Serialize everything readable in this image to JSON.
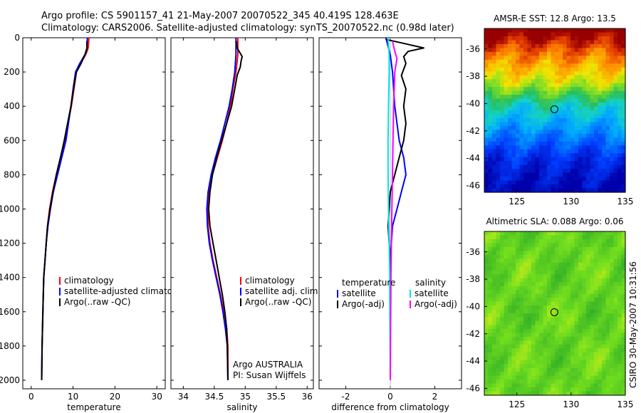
{
  "header": {
    "line1": "Argo profile: CS 5901157_41 21-May-2007 20070522_345 40.419S 128.463E",
    "line2": "Climatology: CARS2006. Satellite-adjusted climatology: synTS_20070522.nc (0.98d later)"
  },
  "footer_stamp": "CSIRO 30-May-2007 10:31:56",
  "colors": {
    "red": "#ff0000",
    "blue": "#0000ff",
    "black": "#000000",
    "cyan": "#00e5e5",
    "magenta": "#ff00ff"
  },
  "chart_data": [
    {
      "id": "temp",
      "type": "line",
      "xlabel": "temperature",
      "xlim": [
        -2,
        32
      ],
      "xticks": [
        0,
        10,
        20,
        30
      ],
      "ylim": [
        0,
        2050
      ],
      "yticks": [
        0,
        200,
        400,
        600,
        800,
        1000,
        1200,
        1400,
        1600,
        1800,
        2000
      ],
      "legend": [
        "climatology",
        "satellite-adjusted climatology",
        "Argo(..raw -QC)"
      ],
      "series": [
        {
          "name": "climatology",
          "color": "red",
          "points": [
            [
              13.8,
              0
            ],
            [
              13.6,
              60
            ],
            [
              13.0,
              100
            ],
            [
              11.8,
              150
            ],
            [
              10.8,
              200
            ],
            [
              10.2,
              300
            ],
            [
              9.6,
              400
            ],
            [
              8.8,
              500
            ],
            [
              8.0,
              600
            ],
            [
              7.0,
              700
            ],
            [
              6.0,
              800
            ],
            [
              5.1,
              900
            ],
            [
              4.4,
              1000
            ],
            [
              3.9,
              1100
            ],
            [
              3.6,
              1200
            ],
            [
              3.3,
              1300
            ],
            [
              3.0,
              1400
            ],
            [
              2.8,
              1600
            ],
            [
              2.6,
              1800
            ],
            [
              2.5,
              2000
            ]
          ]
        },
        {
          "name": "satellite-adjusted climatology",
          "color": "blue",
          "points": [
            [
              13.4,
              0
            ],
            [
              13.3,
              60
            ],
            [
              12.8,
              100
            ],
            [
              11.6,
              150
            ],
            [
              10.6,
              200
            ],
            [
              10.0,
              300
            ],
            [
              9.5,
              400
            ],
            [
              8.9,
              500
            ],
            [
              8.3,
              600
            ],
            [
              7.3,
              700
            ],
            [
              6.3,
              800
            ],
            [
              5.3,
              900
            ],
            [
              4.6,
              1000
            ],
            [
              4.0,
              1100
            ],
            [
              3.6,
              1200
            ],
            [
              3.3,
              1300
            ],
            [
              3.0,
              1400
            ],
            [
              2.8,
              1600
            ],
            [
              2.6,
              1800
            ],
            [
              2.5,
              2000
            ]
          ]
        },
        {
          "name": "Argo(..raw -QC)",
          "color": "black",
          "points": [
            [
              13.3,
              20
            ],
            [
              13.3,
              60
            ],
            [
              13.2,
              80
            ],
            [
              12.8,
              100
            ],
            [
              11.9,
              150
            ],
            [
              10.8,
              200
            ],
            [
              10.1,
              300
            ],
            [
              9.5,
              400
            ],
            [
              8.7,
              500
            ],
            [
              7.9,
              600
            ],
            [
              7.0,
              700
            ],
            [
              6.0,
              800
            ],
            [
              5.2,
              900
            ],
            [
              4.5,
              1000
            ],
            [
              3.9,
              1100
            ],
            [
              3.6,
              1200
            ],
            [
              3.3,
              1300
            ],
            [
              3.0,
              1400
            ],
            [
              2.8,
              1600
            ],
            [
              2.6,
              1800
            ],
            [
              2.5,
              2000
            ]
          ]
        }
      ]
    },
    {
      "id": "sal",
      "type": "line",
      "xlabel": "salinity",
      "xlim": [
        33.8,
        36.1
      ],
      "xticks": [
        34,
        34.5,
        35,
        35.5,
        36
      ],
      "ylim": [
        0,
        2050
      ],
      "legend": [
        "climatology",
        "satellite adj. clim.",
        "Argo(..raw -QC)"
      ],
      "annotation": [
        "Argo AUSTRALIA",
        "PI: Susan Wijffels"
      ],
      "series": [
        {
          "name": "climatology",
          "color": "red",
          "points": [
            [
              34.88,
              0
            ],
            [
              34.88,
              100
            ],
            [
              34.85,
              200
            ],
            [
              34.8,
              300
            ],
            [
              34.76,
              400
            ],
            [
              34.7,
              500
            ],
            [
              34.63,
              600
            ],
            [
              34.55,
              700
            ],
            [
              34.47,
              800
            ],
            [
              34.42,
              900
            ],
            [
              34.4,
              1000
            ],
            [
              34.4,
              1100
            ],
            [
              34.43,
              1200
            ],
            [
              34.48,
              1300
            ],
            [
              34.54,
              1400
            ],
            [
              34.6,
              1500
            ],
            [
              34.65,
              1600
            ],
            [
              34.7,
              1700
            ],
            [
              34.72,
              1800
            ],
            [
              34.72,
              2000
            ]
          ]
        },
        {
          "name": "satellite adj. clim.",
          "color": "blue",
          "points": [
            [
              34.85,
              0
            ],
            [
              34.85,
              100
            ],
            [
              34.83,
              200
            ],
            [
              34.79,
              300
            ],
            [
              34.74,
              400
            ],
            [
              34.67,
              500
            ],
            [
              34.6,
              600
            ],
            [
              34.52,
              700
            ],
            [
              34.45,
              800
            ],
            [
              34.4,
              900
            ],
            [
              34.38,
              1000
            ],
            [
              34.39,
              1100
            ],
            [
              34.42,
              1200
            ],
            [
              34.47,
              1300
            ],
            [
              34.53,
              1400
            ],
            [
              34.59,
              1500
            ],
            [
              34.64,
              1600
            ],
            [
              34.68,
              1700
            ],
            [
              34.71,
              1800
            ],
            [
              34.72,
              2000
            ]
          ]
        },
        {
          "name": "Argo(..raw -QC)",
          "color": "black",
          "points": [
            [
              34.86,
              20
            ],
            [
              34.87,
              60
            ],
            [
              34.95,
              110
            ],
            [
              34.93,
              140
            ],
            [
              34.92,
              170
            ],
            [
              34.87,
              220
            ],
            [
              34.83,
              300
            ],
            [
              34.78,
              400
            ],
            [
              34.7,
              500
            ],
            [
              34.62,
              600
            ],
            [
              34.54,
              700
            ],
            [
              34.47,
              800
            ],
            [
              34.43,
              900
            ],
            [
              34.41,
              1000
            ],
            [
              34.43,
              1100
            ],
            [
              34.48,
              1200
            ],
            [
              34.53,
              1300
            ],
            [
              34.58,
              1400
            ],
            [
              34.63,
              1500
            ],
            [
              34.67,
              1600
            ],
            [
              34.7,
              1700
            ],
            [
              34.71,
              1800
            ],
            [
              34.72,
              2000
            ]
          ]
        }
      ]
    },
    {
      "id": "diff",
      "type": "line",
      "xlabel": "difference from climatology",
      "xlim": [
        -3.2,
        3.2
      ],
      "xticks": [
        -2,
        0,
        2
      ],
      "ylim": [
        0,
        2050
      ],
      "legend_left_title": "temperature",
      "legend_left": [
        "satellite",
        "Argo(-adj)"
      ],
      "legend_right_title": "salinity",
      "legend_right": [
        "satellite",
        "Argo(-adj)"
      ],
      "series": [
        {
          "name": "temp satellite",
          "color": "blue",
          "points": [
            [
              -0.2,
              0
            ],
            [
              -0.1,
              50
            ],
            [
              0.0,
              100
            ],
            [
              0.1,
              200
            ],
            [
              0.2,
              400
            ],
            [
              0.4,
              600
            ],
            [
              0.6,
              700
            ],
            [
              0.7,
              800
            ],
            [
              0.5,
              900
            ],
            [
              0.3,
              1000
            ],
            [
              0.1,
              1100
            ],
            [
              0.0,
              1300
            ],
            [
              0.0,
              1600
            ],
            [
              0.0,
              2000
            ]
          ]
        },
        {
          "name": "temp Argo(-adj)",
          "color": "black",
          "points": [
            [
              -0.2,
              10
            ],
            [
              0.5,
              30
            ],
            [
              1.5,
              60
            ],
            [
              0.8,
              80
            ],
            [
              0.6,
              110
            ],
            [
              0.7,
              150
            ],
            [
              0.5,
              220
            ],
            [
              0.7,
              300
            ],
            [
              0.6,
              400
            ],
            [
              0.7,
              500
            ],
            [
              0.6,
              600
            ],
            [
              0.4,
              700
            ],
            [
              0.0,
              900
            ],
            [
              -0.1,
              1100
            ],
            [
              0.0,
              1300
            ],
            [
              0.0,
              1600
            ],
            [
              0.0,
              2000
            ]
          ]
        },
        {
          "name": "sal satellite",
          "color": "cyan",
          "points": [
            [
              -0.1,
              0
            ],
            [
              -0.05,
              100
            ],
            [
              -0.05,
              200
            ],
            [
              -0.08,
              400
            ],
            [
              -0.1,
              600
            ],
            [
              -0.1,
              800
            ],
            [
              -0.08,
              1000
            ],
            [
              -0.05,
              1200
            ],
            [
              -0.03,
              1400
            ],
            [
              -0.02,
              1600
            ],
            [
              0.0,
              2000
            ]
          ]
        },
        {
          "name": "sal Argo(-adj)",
          "color": "magenta",
          "points": [
            [
              0.1,
              20
            ],
            [
              0.2,
              80
            ],
            [
              0.3,
              120
            ],
            [
              0.2,
              200
            ],
            [
              0.15,
              400
            ],
            [
              0.12,
              600
            ],
            [
              0.1,
              800
            ],
            [
              0.07,
              1000
            ],
            [
              0.05,
              1200
            ],
            [
              0.03,
              1400
            ],
            [
              0.02,
              1600
            ],
            [
              0.0,
              2000
            ]
          ]
        }
      ]
    },
    {
      "id": "sst",
      "type": "heatmap",
      "title": "AMSR-E SST: 12.8  Argo: 13.5",
      "xlim": [
        122,
        135
      ],
      "xticks": [
        125,
        130,
        135
      ],
      "ylim": [
        -46.5,
        -34.5
      ],
      "yticks": [
        -36,
        -38,
        -40,
        -42,
        -44,
        -46
      ],
      "marker": [
        128.463,
        -40.419
      ],
      "band_stops": [
        [
          -35,
          18.0
        ],
        [
          -36.5,
          16.5
        ],
        [
          -38.5,
          15.0
        ],
        [
          -40,
          13.0
        ],
        [
          -42,
          11.5
        ],
        [
          -44,
          10.0
        ],
        [
          -46.5,
          9.0
        ]
      ]
    },
    {
      "id": "sla",
      "type": "heatmap",
      "title": "Altimetric SLA: 0.088  Argo: 0.06",
      "xlim": [
        122,
        135
      ],
      "xticks": [
        125,
        130,
        135
      ],
      "ylim": [
        -46.5,
        -34.5
      ],
      "yticks": [
        -36,
        -38,
        -40,
        -42,
        -44,
        -46
      ],
      "marker": [
        128.463,
        -40.419
      ]
    }
  ]
}
